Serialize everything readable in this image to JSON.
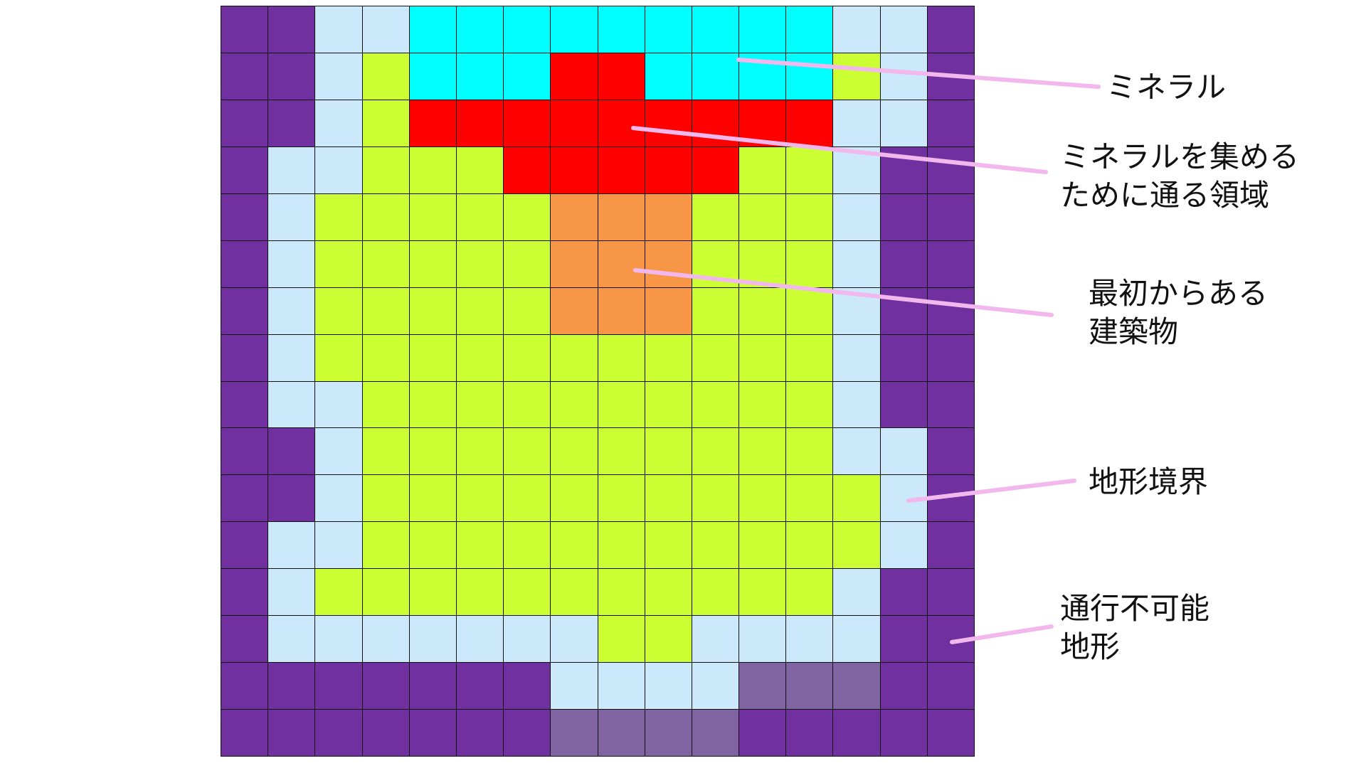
{
  "colors": {
    "P": "#7030a0",
    "L": "#cce9fb",
    "C": "#00ffff",
    "G": "#ccff33",
    "R": "#ff0000",
    "O": "#f79646",
    "M": "#8064a2",
    "leader": "#f2b8ee"
  },
  "legend_key": {
    "P": "通行不可能地形",
    "L": "地形境界",
    "C": "ミネラル",
    "R": "ミネラルを集めるために通る領域",
    "O": "最初からある建築物"
  },
  "grid_rows": [
    "PPLLCCCCCCCCCLLP",
    "PPLGCCCRRCCCCGLP",
    "PPLGRRRRRRRRRLLP",
    "PLLGGGRRRRRGGLPP",
    "PLGGGGGOOOGGGLPP",
    "PLGGGGGOOOGGGLPP",
    "PLGGGGGOOOGGGLPP",
    "PLGGGGGGGGGGGLPP",
    "PLLGGGGGGGGGGLPP",
    "PPLGGGGGGGGGGLLP",
    "PPLGGGGGGGGGGGLP",
    "PLLGGGGGGGGGGGLP",
    "PLGGGGGGGGGGGLPP",
    "PLLLLLLLGGLLLLPP",
    "PPPPPPPLLLLMMMPP",
    "PPPPPPPMMMMPPPPP"
  ],
  "labels": {
    "mineral": "ミネラル",
    "path_area_line1": "ミネラルを集める",
    "path_area_line2": "ために通る領域",
    "building_line1": "最初からある",
    "building_line2": "建築物",
    "terrain_boundary": "地形境界",
    "impassable_line1": "通行不可能",
    "impassable_line2": "地形"
  }
}
